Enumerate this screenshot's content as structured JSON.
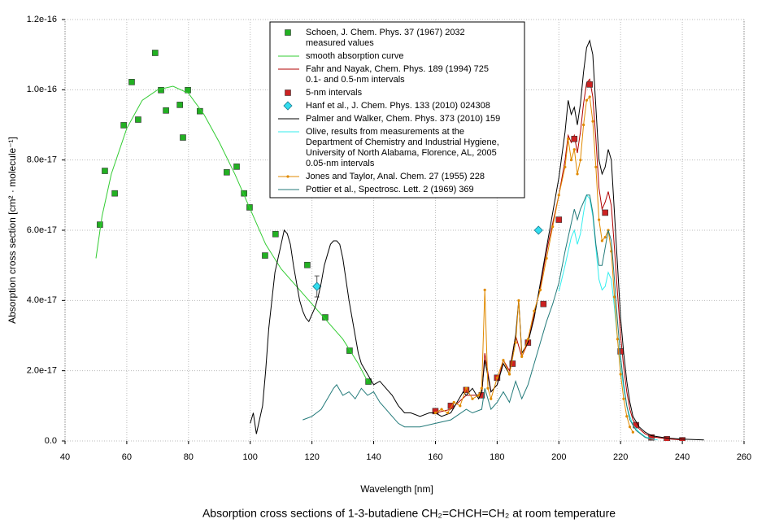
{
  "chart_data": {
    "type": "line",
    "title": "Absorption cross sections of 1-3-butadiene CH₂=CHCH=CH₂ at room temperature",
    "xlabel": "Wavelength [nm]",
    "ylabel": "Absorption cross section [cm² · molecule⁻¹]",
    "xlim": [
      40,
      260
    ],
    "xticks": [
      40,
      60,
      80,
      100,
      120,
      140,
      160,
      180,
      200,
      220,
      240,
      260
    ],
    "ylim": [
      0,
      1.2e-16
    ],
    "yticks": [
      {
        "value": 0,
        "label": "0.0"
      },
      {
        "value": 2e-17,
        "label": "2.0e-17"
      },
      {
        "value": 4e-17,
        "label": "4.0e-17"
      },
      {
        "value": 6e-17,
        "label": "6.0e-17"
      },
      {
        "value": 8e-17,
        "label": "8.0e-17"
      },
      {
        "value": 1e-16,
        "label": "1.0e-16"
      },
      {
        "value": 1.2e-16,
        "label": "1.2e-16"
      }
    ],
    "grid": true,
    "legend": "top",
    "series": [
      {
        "name": "Schoen, J. Chem. Phys. 37 (1967) 2032\nmeasured values",
        "type": "scatter",
        "marker": "square",
        "color": "#22b022",
        "x": [
          51.3,
          52.9,
          56.1,
          59.0,
          61.6,
          63.7,
          69.2,
          71.1,
          72.7,
          77.2,
          78.2,
          79.8,
          83.7,
          92.4,
          95.6,
          98.0,
          99.8,
          104.8,
          108.2,
          118.5,
          124.3,
          132.2,
          138.3
        ],
        "values": [
          6.16e-17,
          7.69e-17,
          7.05e-17,
          8.99e-17,
          1.022e-16,
          9.15e-17,
          1.105e-16,
          9.99e-17,
          9.41e-17,
          9.57e-17,
          8.64e-17,
          9.99e-17,
          9.39e-17,
          7.65e-17,
          7.81e-17,
          7.05e-17,
          6.65e-17,
          5.28e-17,
          5.89e-17,
          5.01e-17,
          3.52e-17,
          2.57e-17,
          1.69e-17
        ]
      },
      {
        "name": "smooth absorption curve",
        "type": "line",
        "color": "#33cc33",
        "x": [
          50,
          52,
          55,
          60,
          65,
          70,
          75,
          80,
          85,
          90,
          95,
          100,
          105,
          110,
          115,
          120,
          125,
          130,
          135,
          138
        ],
        "values": [
          5.2e-17,
          6.4e-17,
          7.6e-17,
          8.9e-17,
          9.7e-17,
          1e-16,
          1.01e-16,
          9.9e-17,
          9.3e-17,
          8.5e-17,
          7.6e-17,
          6.6e-17,
          5.6e-17,
          4.9e-17,
          4.4e-17,
          3.9e-17,
          3.4e-17,
          2.9e-17,
          2.2e-17,
          1.7e-17
        ]
      },
      {
        "name": "Fahr and Nayak, Chem. Phys. 189 (1994) 725\n0.1- and 0.5-nm intervals",
        "type": "line",
        "color": "#b00000",
        "x": [
          160,
          165,
          170,
          175,
          176,
          178,
          180,
          182,
          184,
          186,
          188,
          190,
          192,
          194,
          196,
          198,
          200,
          202,
          203,
          204,
          205,
          206,
          207,
          208,
          209,
          210,
          211,
          212,
          213,
          214,
          215,
          216,
          217,
          218,
          219,
          220,
          221,
          222,
          223,
          224,
          226,
          228,
          230,
          235,
          240
        ],
        "values": [
          8e-18,
          9e-18,
          1.3e-17,
          1.3e-17,
          2.5e-17,
          1.4e-17,
          1.6e-17,
          2.3e-17,
          2e-17,
          3e-17,
          2.4e-17,
          2.8e-17,
          3.6e-17,
          4.4e-17,
          5.4e-17,
          6.2e-17,
          7e-17,
          8e-17,
          8.7e-17,
          8.5e-17,
          8.7e-17,
          8.2e-17,
          8.8e-17,
          9.6e-17,
          1.02e-16,
          1.03e-16,
          9.8e-17,
          8.6e-17,
          7.2e-17,
          6.6e-17,
          6.8e-17,
          7.1e-17,
          6.7e-17,
          5.5e-17,
          4.2e-17,
          3e-17,
          2.1e-17,
          1.4e-17,
          9e-18,
          6e-18,
          3.5e-18,
          2e-18,
          1.2e-18,
          6e-19,
          3e-19
        ]
      },
      {
        "name": "5-nm intervals",
        "type": "scatter",
        "marker": "square",
        "color": "#cc2222",
        "x": [
          160,
          165,
          170,
          175,
          180,
          185,
          190,
          195,
          200,
          205,
          210,
          215,
          220,
          225,
          230,
          235,
          240
        ],
        "values": [
          8.5e-18,
          1e-17,
          1.45e-17,
          1.3e-17,
          1.8e-17,
          2.2e-17,
          2.8e-17,
          3.9e-17,
          6.3e-17,
          8.6e-17,
          1.015e-16,
          6.5e-17,
          2.55e-17,
          4.5e-18,
          1e-18,
          5e-19,
          2e-19
        ]
      },
      {
        "name": "Hanf et al., J. Chem. Phys. 133 (2010) 024308",
        "type": "scatter",
        "marker": "diamond",
        "color": "#33ddee",
        "x": [
          121.6,
          193.4
        ],
        "values": [
          4.4e-17,
          6e-17
        ],
        "errors": [
          3e-18,
          null
        ]
      },
      {
        "name": "Palmer and Walker, Chem. Phys. 373 (2010) 159",
        "type": "line",
        "color": "#000000",
        "x": [
          100,
          101,
          102,
          103,
          104,
          105,
          106,
          107,
          108,
          109,
          110,
          111,
          112,
          113,
          114,
          115,
          116,
          117,
          118,
          119,
          120,
          121,
          122,
          123,
          124,
          125,
          126,
          127,
          128,
          129,
          130,
          131,
          132,
          133,
          134,
          135,
          136,
          138,
          140,
          142,
          144,
          146,
          148,
          150,
          152,
          155,
          158,
          160,
          162,
          165,
          167,
          169,
          170,
          172,
          174,
          175,
          176,
          178,
          180,
          182,
          184,
          186,
          187,
          188,
          190,
          192,
          194,
          196,
          198,
          200,
          202,
          203,
          204,
          205,
          206,
          207,
          208,
          209,
          210,
          211,
          212,
          213,
          214,
          215,
          216,
          217,
          218,
          219,
          220,
          221,
          222,
          223,
          224,
          226,
          228,
          230,
          235,
          240,
          247
        ],
        "values": [
          5e-18,
          8e-18,
          2e-18,
          6e-18,
          1e-17,
          2e-17,
          3.2e-17,
          4e-17,
          4.8e-17,
          5.2e-17,
          5.6e-17,
          6e-17,
          5.9e-17,
          5.6e-17,
          5e-17,
          4.5e-17,
          4e-17,
          3.7e-17,
          3.5e-17,
          3.4e-17,
          3.6e-17,
          3.8e-17,
          4.1e-17,
          4.5e-17,
          5e-17,
          5.3e-17,
          5.6e-17,
          5.7e-17,
          5.7e-17,
          5.6e-17,
          5.2e-17,
          4.6e-17,
          4e-17,
          3.5e-17,
          3e-17,
          2.5e-17,
          2.2e-17,
          1.9e-17,
          1.6e-17,
          1.7e-17,
          1.5e-17,
          1.3e-17,
          1e-17,
          8e-18,
          8e-18,
          7e-18,
          8e-18,
          8e-18,
          7e-18,
          8e-18,
          1.1e-17,
          1.4e-17,
          1.3e-17,
          1.5e-17,
          1.2e-17,
          1.4e-17,
          2.3e-17,
          1.4e-17,
          1.6e-17,
          2.2e-17,
          1.9e-17,
          3e-17,
          4e-17,
          2.5e-17,
          2.8e-17,
          3.5e-17,
          4.5e-17,
          5.5e-17,
          6.5e-17,
          7.5e-17,
          8.8e-17,
          9.7e-17,
          9.3e-17,
          9.5e-17,
          9e-17,
          9.6e-17,
          1.05e-16,
          1.12e-16,
          1.14e-16,
          1.1e-16,
          9.5e-17,
          8e-17,
          7.6e-17,
          7.8e-17,
          8.3e-17,
          8e-17,
          6.5e-17,
          5e-17,
          3.5e-17,
          2.5e-17,
          1.7e-17,
          1.1e-17,
          7e-18,
          4e-18,
          2.5e-18,
          1.5e-18,
          8e-19,
          5e-19,
          3e-19
        ]
      },
      {
        "name": "Olive, results from measurements at the\nDepartment of Chemistry and Industrial Hygiene,\nUniversity of North Alabama, Florence, AL, 2005\n0.05-nm intervals",
        "type": "line",
        "color": "#33eeee",
        "x": [
          200,
          202,
          204,
          205,
          206,
          207,
          208,
          209,
          210,
          211,
          212,
          213,
          214,
          215,
          216,
          217,
          218,
          219,
          220,
          221,
          222,
          223,
          224,
          226,
          228,
          230,
          232
        ],
        "values": [
          4.26e-17,
          5e-17,
          5.8e-17,
          6e-17,
          5.6e-17,
          5.9e-17,
          6.5e-17,
          7e-17,
          6.9e-17,
          6.4e-17,
          5.5e-17,
          4.6e-17,
          4.3e-17,
          4.4e-17,
          4.8e-17,
          4.6e-17,
          3.8e-17,
          2.9e-17,
          2.1e-17,
          1.5e-17,
          1e-17,
          7e-18,
          4.5e-18,
          2.5e-18,
          1.2e-18,
          6e-19,
          3e-19
        ]
      },
      {
        "name": "Jones and Taylor, Anal. Chem. 27 (1955) 228",
        "type": "line",
        "marker": "circle",
        "color": "#e08a00",
        "x": [
          160,
          162,
          164,
          166,
          168,
          170,
          172,
          174,
          175,
          176,
          177,
          178,
          180,
          182,
          184,
          186,
          187,
          188,
          190,
          192,
          194,
          196,
          198,
          200,
          202,
          203,
          204,
          205,
          206,
          207,
          208,
          209,
          210,
          211,
          212,
          213,
          214,
          215,
          216,
          217,
          218,
          219,
          220,
          221,
          222,
          223,
          224
        ],
        "values": [
          8e-18,
          9e-18,
          8e-18,
          1.1e-17,
          1e-17,
          1.5e-17,
          1.2e-17,
          1.3e-17,
          1.5e-17,
          4.3e-17,
          1.5e-17,
          1.2e-17,
          1.8e-17,
          2.3e-17,
          1.9e-17,
          2.8e-17,
          4e-17,
          2.4e-17,
          2.9e-17,
          3.7e-17,
          4.3e-17,
          5.2e-17,
          6.1e-17,
          7e-17,
          7.8e-17,
          8.6e-17,
          8e-17,
          8.3e-17,
          7.6e-17,
          8e-17,
          9e-17,
          9.7e-17,
          9.8e-17,
          9.1e-17,
          7.8e-17,
          6.3e-17,
          5.7e-17,
          5.8e-17,
          6e-17,
          5.4e-17,
          4.1e-17,
          2.9e-17,
          1.9e-17,
          1.2e-17,
          7e-18,
          4e-18,
          2.5e-18
        ]
      },
      {
        "name": "Pottier et al., Spectrosc. Lett. 2 (1969) 369",
        "type": "line",
        "color": "#237a7a",
        "x": [
          117,
          120,
          123,
          125,
          127,
          128,
          130,
          132,
          134,
          136,
          138,
          140,
          142,
          144,
          146,
          148,
          150,
          155,
          160,
          165,
          170,
          172,
          175,
          176,
          178,
          180,
          182,
          184,
          186,
          188,
          190,
          192,
          194,
          196,
          198,
          200,
          202,
          204,
          205,
          206,
          207,
          208,
          209,
          210,
          211,
          212,
          213,
          214,
          215,
          216,
          217,
          218,
          219,
          220,
          221,
          222,
          223,
          225,
          228,
          230
        ],
        "values": [
          6e-18,
          7e-18,
          9e-18,
          1.2e-17,
          1.5e-17,
          1.6e-17,
          1.3e-17,
          1.4e-17,
          1.2e-17,
          1.5e-17,
          1.3e-17,
          1.4e-17,
          1.1e-17,
          9e-18,
          7e-18,
          5e-18,
          4e-18,
          4e-18,
          5e-18,
          6e-18,
          9e-18,
          8e-18,
          9e-18,
          1.5e-17,
          9e-18,
          1.1e-17,
          1.4e-17,
          1.1e-17,
          1.7e-17,
          1.2e-17,
          1.6e-17,
          2.2e-17,
          2.8e-17,
          3.4e-17,
          3.9e-17,
          4.5e-17,
          5.4e-17,
          6.2e-17,
          6.6e-17,
          6.3e-17,
          6.6e-17,
          6.8e-17,
          7e-17,
          7e-17,
          6.5e-17,
          5.6e-17,
          5e-17,
          5e-17,
          5.5e-17,
          6e-17,
          5.7e-17,
          4.6e-17,
          3.4e-17,
          2.4e-17,
          1.6e-17,
          1e-17,
          6e-18,
          3e-18,
          1e-18,
          5e-19
        ]
      }
    ]
  }
}
